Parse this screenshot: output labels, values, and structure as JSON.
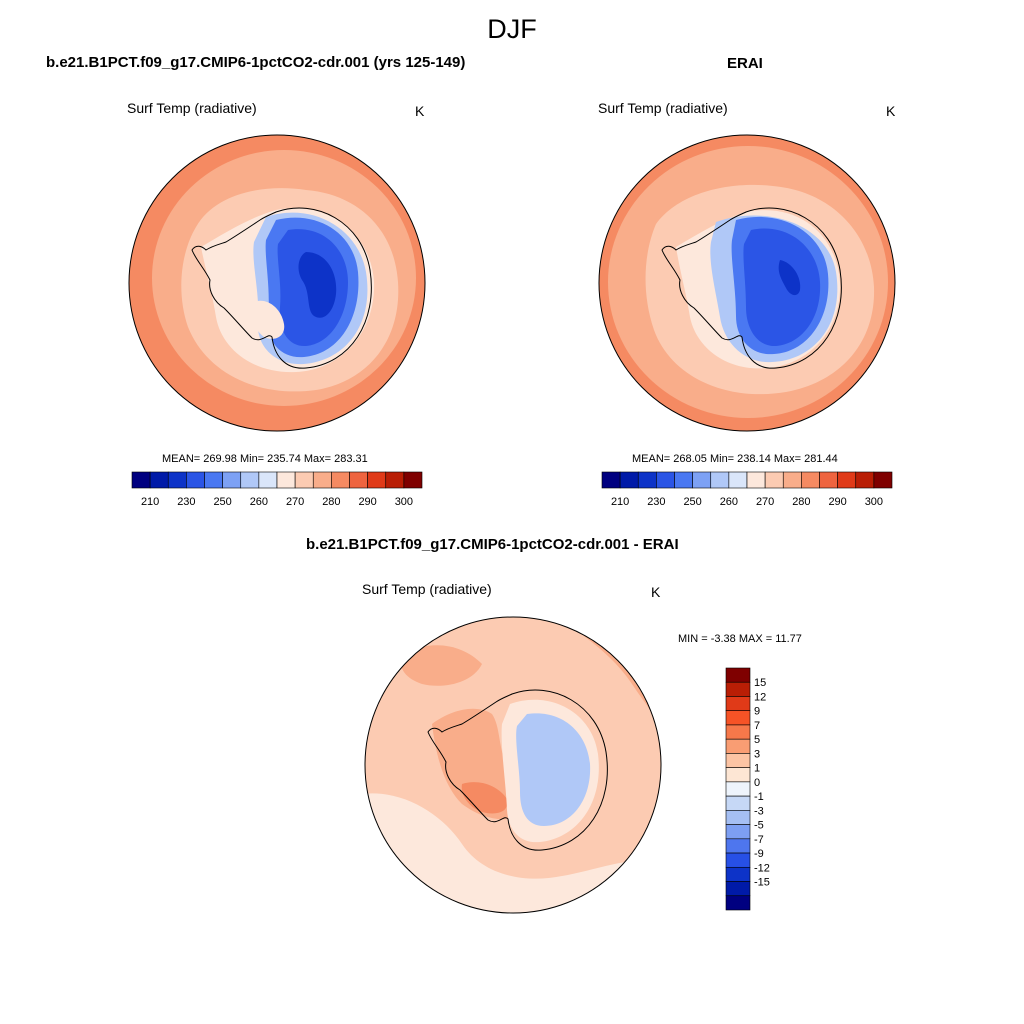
{
  "figure": {
    "title": "DJF",
    "panels": [
      {
        "title": "b.e21.B1PCT.f09_g17.CMIP6-1pctCO2-cdr.001 (yrs 125-149)",
        "variable": "Surf Temp (radiative)",
        "units": "K",
        "stats": "MEAN= 269.98  Min= 235.74  Max= 283.31"
      },
      {
        "title": "ERAI",
        "variable": "Surf Temp (radiative)",
        "units": "K",
        "stats": "MEAN= 268.05  Min= 238.14  Max= 281.44"
      },
      {
        "title": "b.e21.B1PCT.f09_g17.CMIP6-1pctCO2-cdr.001 - ERAI",
        "variable": "Surf Temp (radiative)",
        "units": "K",
        "stats": "MIN =  -3.38 MAX =  11.77"
      }
    ]
  },
  "colorbar_abs": {
    "colors": [
      "#000080",
      "#001aa8",
      "#0d33c8",
      "#2b55e6",
      "#4a78f2",
      "#7da1f5",
      "#b0c8f7",
      "#dae6fa",
      "#fde8dc",
      "#fccbb2",
      "#f9ad8a",
      "#f58a62",
      "#ef643f",
      "#e03a18",
      "#b91e05",
      "#7f0000"
    ],
    "tick_labels": [
      "210",
      "230",
      "250",
      "260",
      "270",
      "280",
      "290",
      "300"
    ]
  },
  "colorbar_diff": {
    "colors": [
      "#7f0000",
      "#b91e05",
      "#e03a18",
      "#f65326",
      "#f6784a",
      "#f99d73",
      "#fcc4a4",
      "#fde6d4",
      "#eef4fc",
      "#c6d8f6",
      "#a5bff3",
      "#7d9ff2",
      "#4e76ee",
      "#2750e6",
      "#0d33c8",
      "#001aa8",
      "#000080"
    ],
    "tick_labels": [
      "15",
      "12",
      "9",
      "7",
      "5",
      "3",
      "1",
      "0",
      "-1",
      "-3",
      "-5",
      "-7",
      "-9",
      "-12",
      "-15"
    ]
  },
  "map_colors": {
    "warm_outer": "#f58a62",
    "warm_mid": "#f9ad8a",
    "warm_light": "#fccbb2",
    "near_zero": "#fde8dc",
    "cool_light": "#b0c8f7",
    "cool_mid": "#7da1f5",
    "cool": "#4a78f2",
    "cold": "#2b55e6",
    "coldest": "#0d33c8"
  }
}
